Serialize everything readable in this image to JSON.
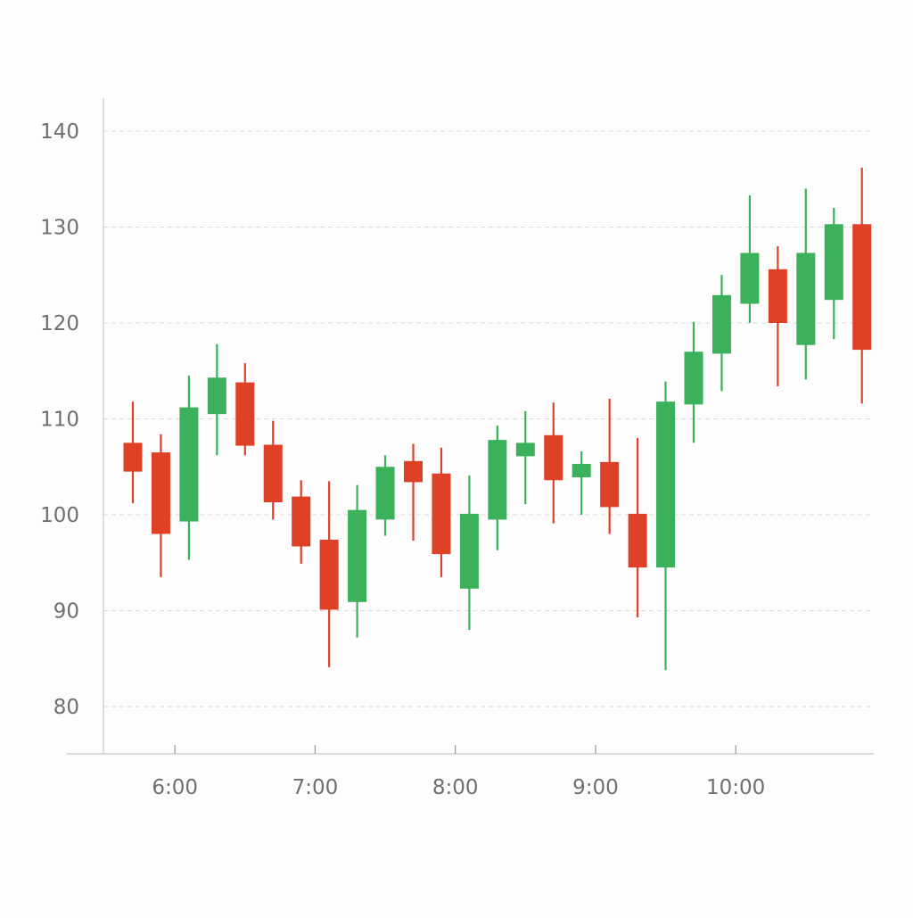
{
  "colors": {
    "up": "#3cb15c",
    "down": "#de4125",
    "grid": "#d9d9d9",
    "axis": "#c9c9c9",
    "tick_text": "#6f6f6f"
  },
  "chart_data": {
    "type": "candlestick",
    "title": "",
    "xlabel": "",
    "ylabel": "",
    "ylim": [
      75,
      144
    ],
    "grid": true,
    "x_ticks": [
      {
        "label": "6:00",
        "x": 1.5
      },
      {
        "label": "7:00",
        "x": 6.5
      },
      {
        "label": "8:00",
        "x": 11.5
      },
      {
        "label": "9:00",
        "x": 16.5
      },
      {
        "label": "10:00",
        "x": 21.5
      }
    ],
    "y_ticks": [
      {
        "label": "80",
        "value": 80
      },
      {
        "label": "90",
        "value": 90
      },
      {
        "label": "100",
        "value": 100
      },
      {
        "label": "110",
        "value": 110
      },
      {
        "label": "120",
        "value": 120
      },
      {
        "label": "130",
        "value": 130
      },
      {
        "label": "140",
        "value": 140
      }
    ],
    "candles": [
      {
        "x": 0,
        "open": 107.5,
        "high": 111.8,
        "low": 101.2,
        "close": 104.5
      },
      {
        "x": 1,
        "open": 106.5,
        "high": 108.4,
        "low": 93.5,
        "close": 98.0
      },
      {
        "x": 2,
        "open": 99.3,
        "high": 114.5,
        "low": 95.3,
        "close": 111.2
      },
      {
        "x": 3,
        "open": 110.5,
        "high": 117.8,
        "low": 106.2,
        "close": 114.3
      },
      {
        "x": 4,
        "open": 113.8,
        "high": 115.8,
        "low": 106.2,
        "close": 107.2
      },
      {
        "x": 5,
        "open": 107.3,
        "high": 109.8,
        "low": 99.5,
        "close": 101.3
      },
      {
        "x": 6,
        "open": 101.9,
        "high": 103.6,
        "low": 94.9,
        "close": 96.7
      },
      {
        "x": 7,
        "open": 97.4,
        "high": 103.5,
        "low": 84.1,
        "close": 90.1
      },
      {
        "x": 8,
        "open": 90.9,
        "high": 103.1,
        "low": 87.2,
        "close": 100.5
      },
      {
        "x": 9,
        "open": 99.5,
        "high": 106.2,
        "low": 97.8,
        "close": 105.0
      },
      {
        "x": 10,
        "open": 105.6,
        "high": 107.4,
        "low": 97.3,
        "close": 103.4
      },
      {
        "x": 11,
        "open": 104.3,
        "high": 107.0,
        "low": 93.5,
        "close": 95.9
      },
      {
        "x": 12,
        "open": 92.3,
        "high": 104.1,
        "low": 88.0,
        "close": 100.1
      },
      {
        "x": 13,
        "open": 99.5,
        "high": 109.3,
        "low": 96.3,
        "close": 107.8
      },
      {
        "x": 14,
        "open": 106.1,
        "high": 110.8,
        "low": 101.1,
        "close": 107.5
      },
      {
        "x": 15,
        "open": 108.3,
        "high": 111.7,
        "low": 99.1,
        "close": 103.6
      },
      {
        "x": 16,
        "open": 103.9,
        "high": 106.6,
        "low": 100.0,
        "close": 105.3
      },
      {
        "x": 17,
        "open": 105.5,
        "high": 112.1,
        "low": 98.0,
        "close": 100.8
      },
      {
        "x": 18,
        "open": 100.1,
        "high": 108.0,
        "low": 89.3,
        "close": 94.5
      },
      {
        "x": 19,
        "open": 94.5,
        "high": 113.9,
        "low": 83.8,
        "close": 111.8
      },
      {
        "x": 20,
        "open": 111.5,
        "high": 120.1,
        "low": 107.5,
        "close": 117.0
      },
      {
        "x": 21,
        "open": 116.8,
        "high": 125.0,
        "low": 112.9,
        "close": 122.9
      },
      {
        "x": 22,
        "open": 122.0,
        "high": 133.3,
        "low": 120.0,
        "close": 127.3
      },
      {
        "x": 23,
        "open": 125.6,
        "high": 128.0,
        "low": 113.4,
        "close": 120.0
      },
      {
        "x": 24,
        "open": 117.7,
        "high": 134.0,
        "low": 114.1,
        "close": 127.3
      },
      {
        "x": 25,
        "open": 122.4,
        "high": 132.0,
        "low": 118.3,
        "close": 130.3
      },
      {
        "x": 26,
        "open": 130.3,
        "high": 136.2,
        "low": 111.6,
        "close": 117.2
      }
    ]
  }
}
